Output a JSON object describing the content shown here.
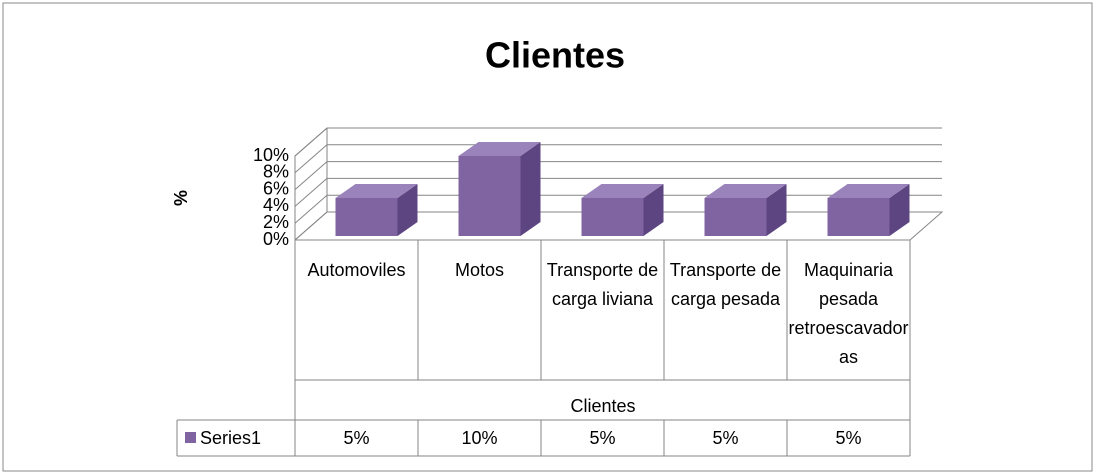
{
  "chart_data": {
    "type": "bar3d",
    "title": "Clientes",
    "y_axis_label": "%",
    "x_axis_label": "Clientes",
    "categories": [
      "Automoviles",
      "Motos",
      "Transporte de carga liviana",
      "Transporte de carga pesada",
      "Maquinaria pesada retroescavadoras"
    ],
    "series": [
      {
        "name": "Series1",
        "color": "#8064a2",
        "values": [
          5,
          10,
          5,
          5,
          5
        ],
        "value_labels": [
          "5%",
          "10%",
          "5%",
          "5%",
          "5%"
        ]
      }
    ],
    "ylim": [
      0,
      10
    ],
    "yticks": [
      {
        "value": 0,
        "label": "0%"
      },
      {
        "value": 2,
        "label": "2%"
      },
      {
        "value": 4,
        "label": "4%"
      },
      {
        "value": 6,
        "label": "6%"
      },
      {
        "value": 8,
        "label": "8%"
      },
      {
        "value": 10,
        "label": "10%"
      }
    ],
    "grid": true
  }
}
